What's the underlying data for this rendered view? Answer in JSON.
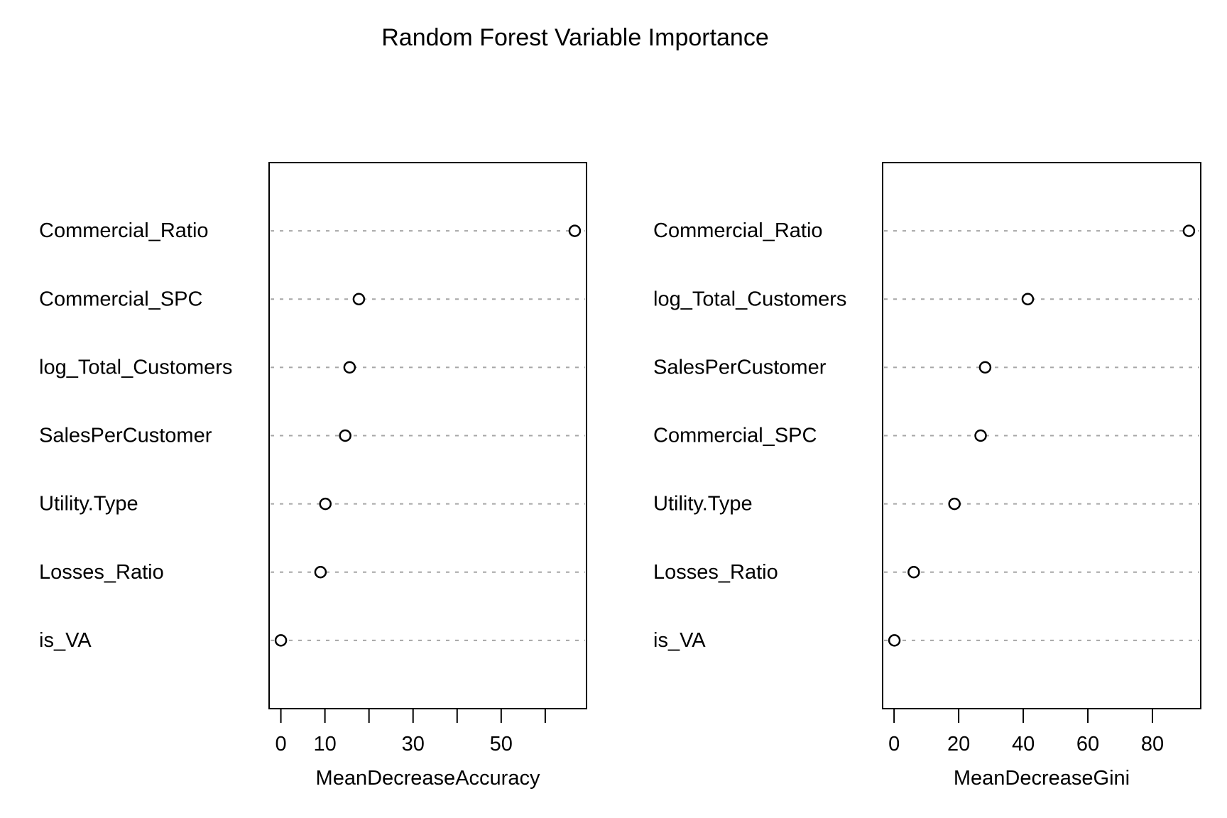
{
  "title": "Random Forest Variable Importance",
  "colors": {
    "foreground": "#000000",
    "grid_dotted": "#A6A6A6",
    "background": "#FFFFFF",
    "marker_fill": "#FFFFFF"
  },
  "chart_data": [
    {
      "type": "scatter",
      "subtype": "dot-plot",
      "title": "",
      "xlabel": "MeanDecreaseAccuracy",
      "ylabel": "",
      "categories": [
        "Commercial_Ratio",
        "Commercial_SPC",
        "log_Total_Customers",
        "SalesPerCustomer",
        "Utility.Type",
        "Losses_Ratio",
        "is_VA"
      ],
      "values": [
        66.7,
        17.7,
        15.6,
        14.6,
        10.1,
        9.0,
        0.0
      ],
      "xticks": [
        0,
        10,
        20,
        30,
        40,
        50,
        60
      ],
      "xtick_labels": [
        "0",
        "10",
        "",
        "30",
        "",
        "50",
        ""
      ],
      "xlim": [
        0.0,
        66.7
      ],
      "grid": "dotted horizontal row lines",
      "legend": "none",
      "marker": "open-circle"
    },
    {
      "type": "scatter",
      "subtype": "dot-plot",
      "title": "",
      "xlabel": "MeanDecreaseGini",
      "ylabel": "",
      "categories": [
        "Commercial_Ratio",
        "log_Total_Customers",
        "SalesPerCustomer",
        "Commercial_SPC",
        "Utility.Type",
        "Losses_Ratio",
        "is_VA"
      ],
      "values": [
        91.3,
        41.4,
        28.2,
        26.8,
        18.7,
        6.1,
        0.1
      ],
      "xticks": [
        0,
        20,
        40,
        60,
        80
      ],
      "xtick_labels": [
        "0",
        "20",
        "40",
        "60",
        "80"
      ],
      "xlim": [
        0.1,
        91.3
      ],
      "grid": "dotted horizontal row lines",
      "legend": "none",
      "marker": "open-circle"
    }
  ]
}
